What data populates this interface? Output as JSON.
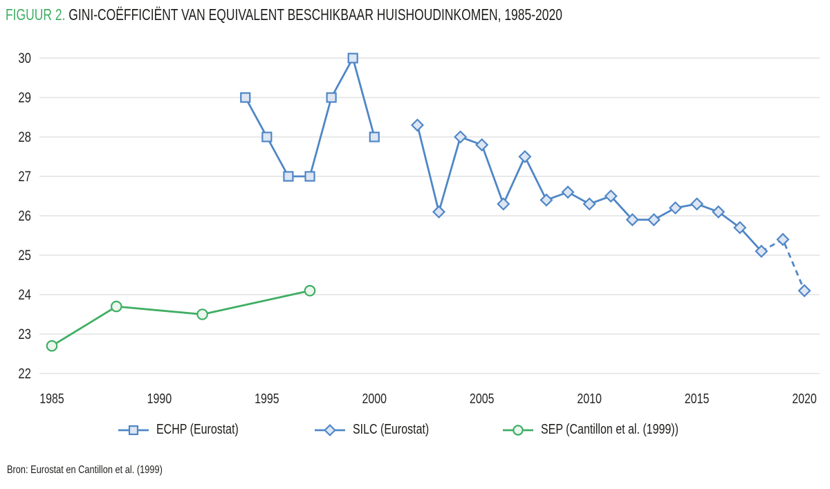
{
  "title": {
    "prefix": "FIGUUR 2.",
    "text": "GINI-COËFFICIËNT VAN EQUIVALENT BESCHIKBAAR HUISHOUDINKOMEN, 1985-2020"
  },
  "source": "Bron: Eurostat en Cantillon et al. (1999)",
  "colors": {
    "accent_green": "#3fae63",
    "series_blue": "#4f86c6",
    "series_blue_fill": "#dde6f4",
    "series_green": "#3fae63",
    "series_green_fill": "#eaf6ee",
    "grid": "#dcdcdc",
    "tick_text": "#262626"
  },
  "chart_data": {
    "type": "line",
    "title": "FIGUUR 2. GINI-COËFFICIËNT VAN EQUIVALENT BESCHIKBAAR HUISHOUDINKOMEN, 1985-2020",
    "xlabel": "",
    "ylabel": "",
    "grid": "horizontal",
    "legend_position": "bottom",
    "x_axis": {
      "range": [
        1985,
        2020
      ],
      "ticks": [
        1985,
        1990,
        1995,
        2000,
        2005,
        2010,
        2015,
        2020
      ]
    },
    "y_axis": {
      "range": [
        22,
        30
      ],
      "ticks": [
        22,
        23,
        24,
        25,
        26,
        27,
        28,
        29,
        30
      ]
    },
    "series": [
      {
        "name": "ECHP (Eurostat)",
        "marker": "square",
        "color": "#4f86c6",
        "fill": "#dde6f4",
        "x": [
          1994,
          1995,
          1996,
          1997,
          1998,
          1999,
          2000
        ],
        "values": [
          29,
          28,
          27,
          27,
          29,
          30,
          28
        ]
      },
      {
        "name": "SILC (Eurostat)",
        "marker": "diamond",
        "color": "#4f86c6",
        "fill": "#dde6f4",
        "dashed_from": 2018,
        "x": [
          2002,
          2003,
          2004,
          2005,
          2006,
          2007,
          2008,
          2009,
          2010,
          2011,
          2012,
          2013,
          2014,
          2015,
          2016,
          2017,
          2018,
          2019,
          2020
        ],
        "values": [
          28.3,
          26.1,
          28.0,
          27.8,
          26.3,
          27.5,
          26.4,
          26.6,
          26.3,
          26.5,
          25.9,
          25.9,
          26.2,
          26.3,
          26.1,
          25.7,
          25.1,
          25.4,
          24.1
        ]
      },
      {
        "name": "SEP (Cantillon et al. (1999))",
        "marker": "circle",
        "color": "#3fae63",
        "fill": "#eaf6ee",
        "x": [
          1985,
          1988,
          1992,
          1997
        ],
        "values": [
          22.7,
          23.7,
          23.5,
          24.1
        ]
      }
    ]
  }
}
